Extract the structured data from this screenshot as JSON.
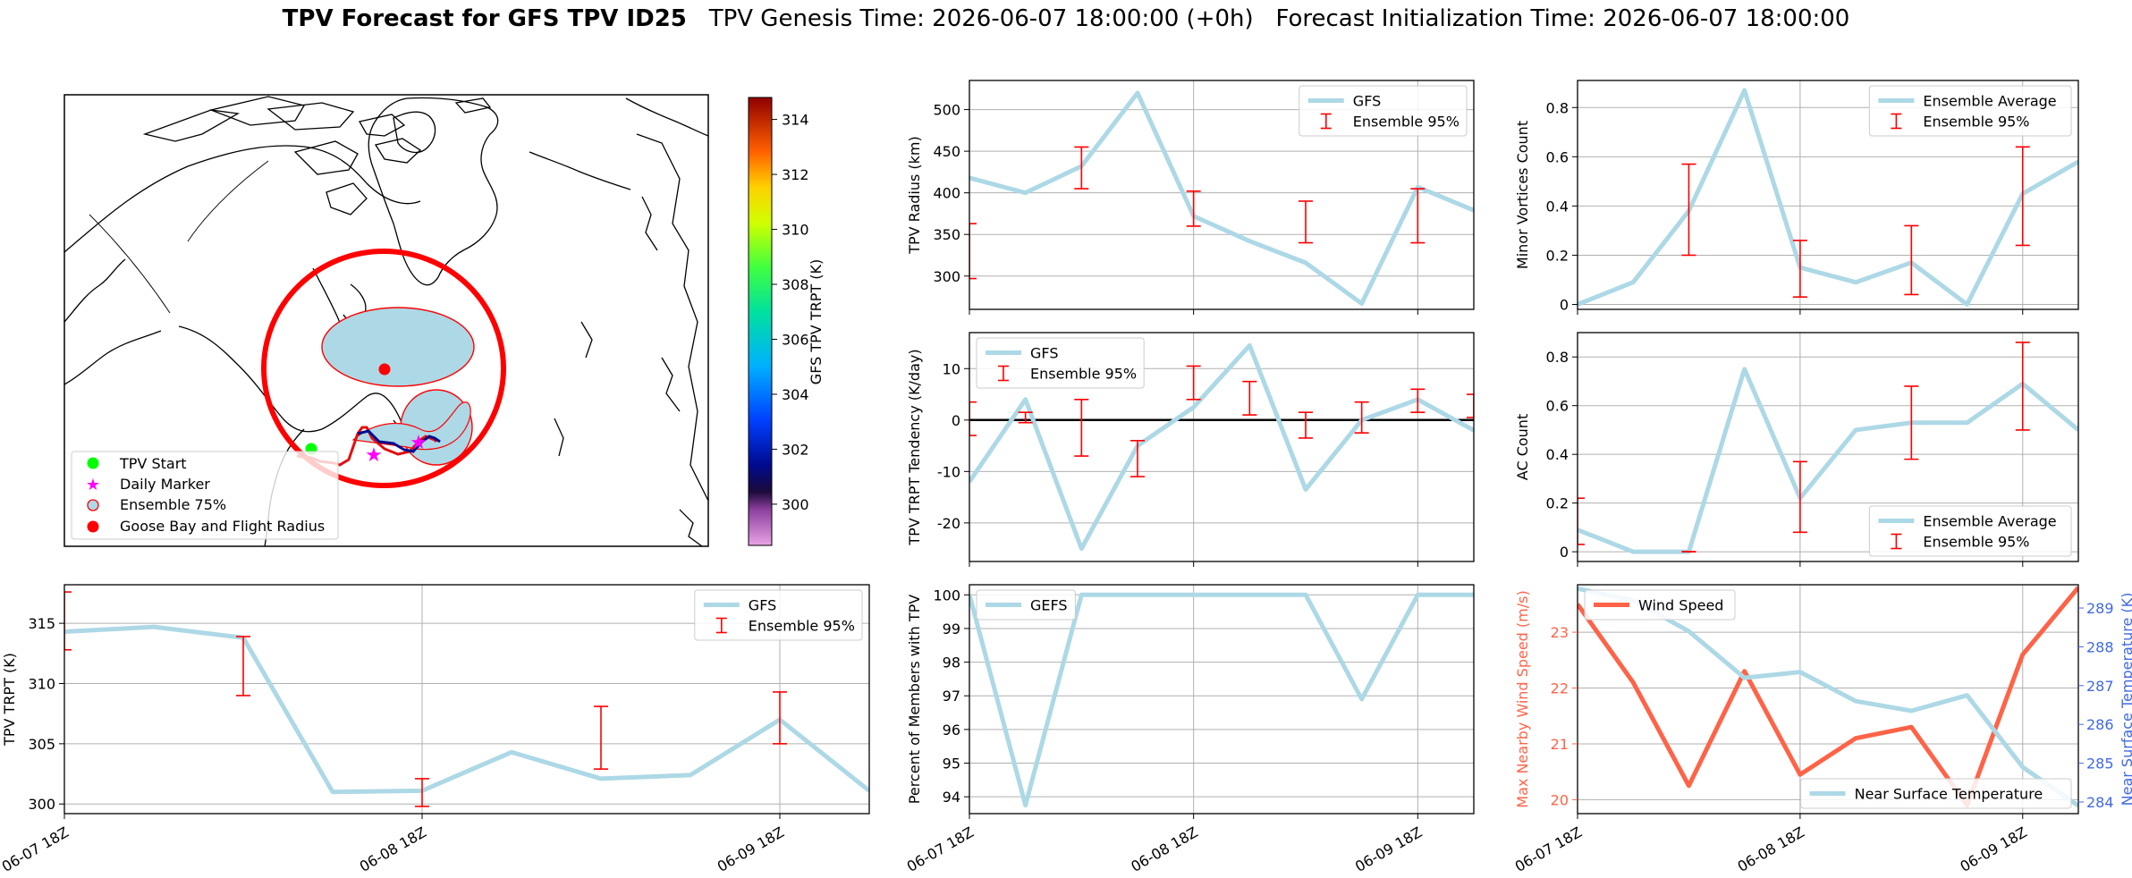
{
  "title": {
    "bold": "TPV Forecast for GFS TPV ID25",
    "genesis": "TPV Genesis Time: 2026-06-07 18:00:00 (+0h)",
    "init": "Forecast Initialization Time: 2026-06-07 18:00:00"
  },
  "colors": {
    "gfs_line": "#add8e6",
    "ensemble_bar": "#ff0000",
    "wind_line": "#ff6347",
    "wind_axis_label": "#ff6347",
    "temp_axis_label": "#4169e1",
    "ring": "#ff0000",
    "tpv_start": "#00ff00",
    "daily_marker": "#ff00ff",
    "goose_bay": "#ff0000"
  },
  "time_ticks": [
    "06-07 18Z",
    "06-08 18Z",
    "06-09 18Z"
  ],
  "map": {
    "legend": [
      "TPV Start",
      "Daily Marker",
      "Ensemble 75%",
      "Goose Bay and Flight Radius"
    ],
    "colorbar": {
      "label": "GFS TPV TRPT (K)",
      "ticks": [
        "314",
        "312",
        "310",
        "308",
        "306",
        "304",
        "302",
        "300"
      ],
      "range": [
        298.5,
        314.8
      ]
    }
  },
  "chart_data": [
    {
      "id": "radius",
      "type": "line",
      "ylabel": "TPV Radius (km)",
      "ylim": [
        260,
        535
      ],
      "yticks": [
        300,
        350,
        400,
        450,
        500
      ],
      "legend": [
        "GFS",
        "Ensemble 95%"
      ],
      "legend_loc": "upper right",
      "x": [
        0,
        0.25,
        0.5,
        0.75,
        1.0,
        1.25,
        1.5,
        1.75,
        2.0,
        2.25
      ],
      "series": [
        {
          "name": "GFS",
          "values": [
            418,
            400,
            432,
            520,
            372,
            342,
            316,
            267,
            407,
            379
          ]
        }
      ],
      "errorbars": [
        {
          "x": 0,
          "low": 297,
          "high": 363
        },
        {
          "x": 0.5,
          "low": 405,
          "high": 455
        },
        {
          "x": 1.0,
          "low": 360,
          "high": 402
        },
        {
          "x": 1.5,
          "low": 340,
          "high": 390
        },
        {
          "x": 2.0,
          "low": 340,
          "high": 405
        }
      ]
    },
    {
      "id": "minor",
      "type": "line",
      "ylabel": "Minor Vortices Count",
      "ylim": [
        -0.02,
        0.91
      ],
      "yticks": [
        0.0,
        0.2,
        0.4,
        0.6,
        0.8
      ],
      "legend": [
        "Ensemble Average",
        "Ensemble 95%"
      ],
      "legend_loc": "upper right",
      "x": [
        0,
        0.25,
        0.5,
        0.75,
        1.0,
        1.25,
        1.5,
        1.75,
        2.0,
        2.25
      ],
      "series": [
        {
          "name": "Ensemble Average",
          "values": [
            0.0,
            0.09,
            0.38,
            0.87,
            0.15,
            0.09,
            0.17,
            0.0,
            0.45,
            0.58
          ]
        }
      ],
      "errorbars": [
        {
          "x": 0.5,
          "low": 0.2,
          "high": 0.57
        },
        {
          "x": 1.0,
          "low": 0.03,
          "high": 0.26
        },
        {
          "x": 1.5,
          "low": 0.04,
          "high": 0.32
        },
        {
          "x": 2.0,
          "low": 0.24,
          "high": 0.64
        }
      ]
    },
    {
      "id": "tendency",
      "type": "line",
      "ylabel": "TPV TRPT Tendency (K/day)",
      "ylim": [
        -27.5,
        17
      ],
      "yticks": [
        -20,
        -10,
        0,
        10
      ],
      "legend": [
        "GFS",
        "Ensemble 95%"
      ],
      "legend_loc": "upper left",
      "zero_line": true,
      "x": [
        0,
        0.25,
        0.5,
        0.75,
        1.0,
        1.25,
        1.5,
        1.75,
        2.0,
        2.25
      ],
      "series": [
        {
          "name": "GFS",
          "values": [
            -12,
            4,
            -25,
            -5,
            2.5,
            14.5,
            -13.5,
            0,
            4,
            -2
          ]
        }
      ],
      "errorbars": [
        {
          "x": 0,
          "low": -3,
          "high": 3.5
        },
        {
          "x": 0.25,
          "low": -0.5,
          "high": 1.5
        },
        {
          "x": 0.5,
          "low": -7,
          "high": 4
        },
        {
          "x": 0.75,
          "low": -11,
          "high": -4
        },
        {
          "x": 1.0,
          "low": 4,
          "high": 10.5
        },
        {
          "x": 1.25,
          "low": 1,
          "high": 7.5
        },
        {
          "x": 1.5,
          "low": -3.5,
          "high": 1.5
        },
        {
          "x": 1.75,
          "low": -2.5,
          "high": 3.5
        },
        {
          "x": 2.0,
          "low": 1.5,
          "high": 6
        },
        {
          "x": 2.25,
          "low": 0.5,
          "high": 5
        }
      ]
    },
    {
      "id": "ac",
      "type": "line",
      "ylabel": "AC Count",
      "ylim": [
        -0.04,
        0.9
      ],
      "yticks": [
        0.0,
        0.2,
        0.4,
        0.6,
        0.8
      ],
      "legend": [
        "Ensemble Average",
        "Ensemble 95%"
      ],
      "legend_loc": "lower right",
      "x": [
        0,
        0.25,
        0.5,
        0.75,
        1.0,
        1.25,
        1.5,
        1.75,
        2.0,
        2.25
      ],
      "series": [
        {
          "name": "Ensemble Average",
          "values": [
            0.09,
            0.0,
            0.0,
            0.75,
            0.22,
            0.5,
            0.53,
            0.53,
            0.69,
            0.5
          ]
        }
      ],
      "errorbars": [
        {
          "x": 0,
          "low": 0.03,
          "high": 0.22
        },
        {
          "x": 0.5,
          "low": 0.0,
          "high": 0.0
        },
        {
          "x": 1.0,
          "low": 0.08,
          "high": 0.37
        },
        {
          "x": 1.5,
          "low": 0.38,
          "high": 0.68
        },
        {
          "x": 2.0,
          "low": 0.5,
          "high": 0.86
        }
      ]
    },
    {
      "id": "trpt",
      "type": "line",
      "ylabel": "TPV TRPT (K)",
      "ylim": [
        299.2,
        318.2
      ],
      "yticks": [
        300,
        305,
        310,
        315
      ],
      "legend": [
        "GFS",
        "Ensemble 95%"
      ],
      "legend_loc": "upper right",
      "x": [
        0,
        0.25,
        0.5,
        0.75,
        1.0,
        1.25,
        1.5,
        1.75,
        2.0,
        2.25
      ],
      "series": [
        {
          "name": "GFS",
          "values": [
            314.3,
            314.7,
            313.8,
            301.0,
            301.1,
            304.3,
            302.1,
            302.4,
            307.0,
            301.1
          ]
        }
      ],
      "errorbars": [
        {
          "x": 0,
          "low": 312.8,
          "high": 317.6
        },
        {
          "x": 0.5,
          "low": 309.0,
          "high": 313.9
        },
        {
          "x": 1.0,
          "low": 299.8,
          "high": 302.1
        },
        {
          "x": 1.5,
          "low": 302.9,
          "high": 308.1
        },
        {
          "x": 2.0,
          "low": 305.0,
          "high": 309.3
        }
      ]
    },
    {
      "id": "members",
      "type": "line",
      "ylabel": "Percent of Members with TPV",
      "ylim": [
        93.5,
        100.3
      ],
      "yticks": [
        94,
        95,
        96,
        97,
        98,
        99,
        100
      ],
      "legend": [
        "GEFS"
      ],
      "legend_loc": "upper left",
      "x": [
        0,
        0.25,
        0.5,
        0.75,
        1.0,
        1.25,
        1.5,
        1.75,
        2.0,
        2.25
      ],
      "series": [
        {
          "name": "GEFS",
          "values": [
            100,
            93.75,
            100,
            100,
            100,
            100,
            100,
            96.9,
            100,
            100
          ]
        }
      ],
      "errorbars": []
    },
    {
      "id": "wind",
      "type": "line",
      "ylabel": "Max Nearby Wind Speed (m/s)",
      "ylabel2": "Near Surface Temperature (K)",
      "ylim": [
        19.75,
        23.85
      ],
      "yticks": [
        20,
        21,
        22,
        23
      ],
      "ylim2": [
        283.7,
        289.6
      ],
      "yticks2": [
        284,
        285,
        286,
        287,
        288,
        289
      ],
      "legend": [
        "Wind Speed"
      ],
      "legend_loc": "upper left",
      "legend2": [
        "Near Surface Temperature"
      ],
      "legend2_loc": "lower right",
      "x": [
        0,
        0.25,
        0.5,
        0.75,
        1.0,
        1.25,
        1.5,
        1.75,
        2.0,
        2.25
      ],
      "series": [
        {
          "name": "Wind Speed",
          "axis": "left",
          "values": [
            23.5,
            22.1,
            20.25,
            22.3,
            20.45,
            21.1,
            21.3,
            19.9,
            22.6,
            23.8
          ]
        },
        {
          "name": "Near Surface Temperature",
          "axis": "right",
          "values": [
            289.5,
            289.2,
            288.4,
            287.2,
            287.35,
            286.6,
            286.35,
            286.75,
            284.9,
            283.9
          ]
        }
      ],
      "errorbars": []
    }
  ]
}
